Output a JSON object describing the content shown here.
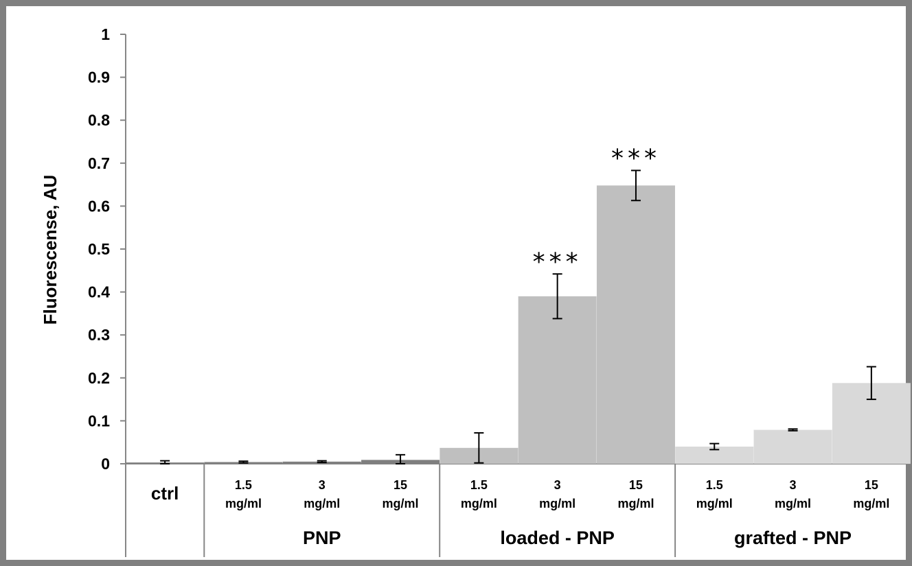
{
  "chart_data": {
    "type": "bar",
    "ylabel": "Fluorescense, AU",
    "ylim": [
      0,
      1
    ],
    "yticks": [
      "0",
      "0.1",
      "0.2",
      "0.3",
      "0.4",
      "0.5",
      "0.6",
      "0.7",
      "0.8",
      "0.9",
      "1"
    ],
    "groups": [
      {
        "label": "",
        "start": 0,
        "end": 1
      },
      {
        "label": "PNP",
        "start": 1,
        "end": 4
      },
      {
        "label": "loaded - PNP",
        "start": 4,
        "end": 7
      },
      {
        "label": "grafted - PNP",
        "start": 7,
        "end": 10
      }
    ],
    "bars": [
      {
        "label": [
          "ctrl"
        ],
        "value": 0.003,
        "error": 0.004,
        "color": "#7f7f7f",
        "sig": ""
      },
      {
        "label": [
          "1.5",
          "mg/ml"
        ],
        "value": 0.004,
        "error": 0.002,
        "color": "#7f7f7f",
        "sig": ""
      },
      {
        "label": [
          "3",
          "mg/ml"
        ],
        "value": 0.005,
        "error": 0.002,
        "color": "#7f7f7f",
        "sig": ""
      },
      {
        "label": [
          "15",
          "mg/ml"
        ],
        "value": 0.009,
        "error": 0.012,
        "color": "#7f7f7f",
        "sig": ""
      },
      {
        "label": [
          "1.5",
          "mg/ml"
        ],
        "value": 0.037,
        "error": 0.035,
        "color": "#bfbfbf",
        "sig": ""
      },
      {
        "label": [
          "3",
          "mg/ml"
        ],
        "value": 0.39,
        "error": 0.052,
        "color": "#bfbfbf",
        "sig": "***"
      },
      {
        "label": [
          "15",
          "mg/ml"
        ],
        "value": 0.648,
        "error": 0.035,
        "color": "#bfbfbf",
        "sig": "***"
      },
      {
        "label": [
          "1.5",
          "mg/ml"
        ],
        "value": 0.04,
        "error": 0.007,
        "color": "#d9d9d9",
        "sig": ""
      },
      {
        "label": [
          "3",
          "mg/ml"
        ],
        "value": 0.079,
        "error": 0.002,
        "color": "#d9d9d9",
        "sig": ""
      },
      {
        "label": [
          "15",
          "mg/ml"
        ],
        "value": 0.188,
        "error": 0.038,
        "color": "#d9d9d9",
        "sig": ""
      }
    ]
  }
}
